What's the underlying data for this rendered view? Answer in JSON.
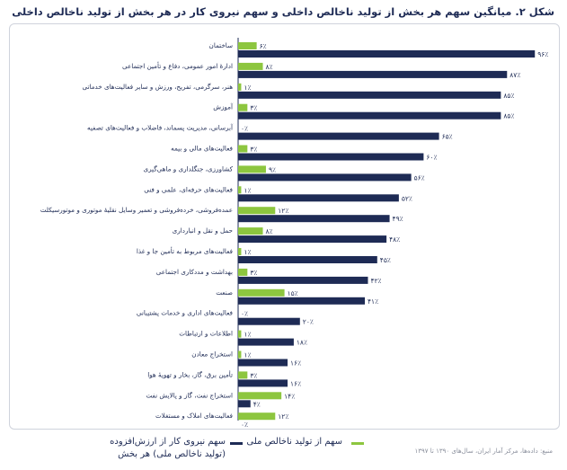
{
  "chart_data": {
    "type": "bar",
    "title": "شکل ۲. میانگین سهم هر بخش از تولید ناخالص داخلی و سهم نیروی کار در هر بخش از تولید ناخالص داخلی",
    "categories": [
      "ساختمان",
      "ادارهٔ امور عمومی، دفاع و تأمین اجتماعی",
      "هنر، سرگرمی، تفریح، ورزش و سایر فعالیت‌های خدماتی",
      "آموزش",
      "آبرسانی، مدیریت پسماند، فاضلاب و فعالیت‌های تصفیه",
      "فعالیت‌های مالی و بیمه",
      "کشاورزی، جنگلداری و ماهی‌گیری",
      "فعالیت‌های حرفه‌ای، علمی و فنی",
      "عمده‌فروشی، خرده‌فروشی و تعمیر وسایل نقلیهٔ موتوری و موتورسیکلت",
      "حمل و نقل و انبارداری",
      "فعالیت‌های مربوط به تأمین جا و غذا",
      "بهداشت و مددکاری اجتماعی",
      "صنعت",
      "فعالیت‌های اداری و خدمات پشتیبانی",
      "اطلاعات و ارتباطات",
      "استخراج معادن",
      "تأمین برق، گاز، بخار و تهویهٔ هوا",
      "استخراج نفت، گاز و پالایش نفت",
      "فعالیت‌های املاک و مستغلات"
    ],
    "series": [
      {
        "name": "سهم از تولید ناخالص ملی",
        "color": "#8dc63f",
        "values": [
          6,
          8,
          1,
          3,
          0,
          3,
          9,
          1,
          12,
          8,
          1,
          3,
          15,
          0,
          1,
          1,
          3,
          14,
          12
        ],
        "labels": [
          "۶٪",
          "۸٪",
          "۱٪",
          "۳٪",
          "۰٪",
          "۳٪",
          "۹٪",
          "۱٪",
          "۱۲٪",
          "۸٪",
          "۱٪",
          "۳٪",
          "۱۵٪",
          "۰٪",
          "۱٪",
          "۱٪",
          "۳٪",
          "۱۴٪",
          "۱۲٪"
        ]
      },
      {
        "name": "سهم نیروی کار از ارزش‌افزوده (تولید ناخالص ملی) هر بخش",
        "color": "#1e2b55",
        "values": [
          96,
          87,
          85,
          85,
          65,
          60,
          56,
          52,
          49,
          48,
          45,
          42,
          41,
          20,
          18,
          16,
          16,
          4,
          0
        ],
        "labels": [
          "۹۶٪",
          "۸۷٪",
          "۸۵٪",
          "۸۵٪",
          "۶۵٪",
          "۶۰٪",
          "۵۶٪",
          "۵۲٪",
          "۴۹٪",
          "۴۸٪",
          "۴۵٪",
          "۴۲٪",
          "۴۱٪",
          "۲۰٪",
          "۱۸٪",
          "۱۶٪",
          "۱۶٪",
          "۴٪",
          "۰٪"
        ]
      }
    ],
    "xlim": [
      0,
      100
    ],
    "grid": false,
    "legend_position": "bottom"
  },
  "legend": {
    "green_label": "سهم از تولید ناخالص ملی",
    "navy_label_line1": "سهم نیروی کار از ارزش‌افزوده",
    "navy_label_line2": "(تولید ناخالص ملی) هر بخش"
  },
  "source": "منبع: داده‌ها، مرکز آمار ایران، سال‌های ۱۳۹۰ تا ۱۳۹۷"
}
